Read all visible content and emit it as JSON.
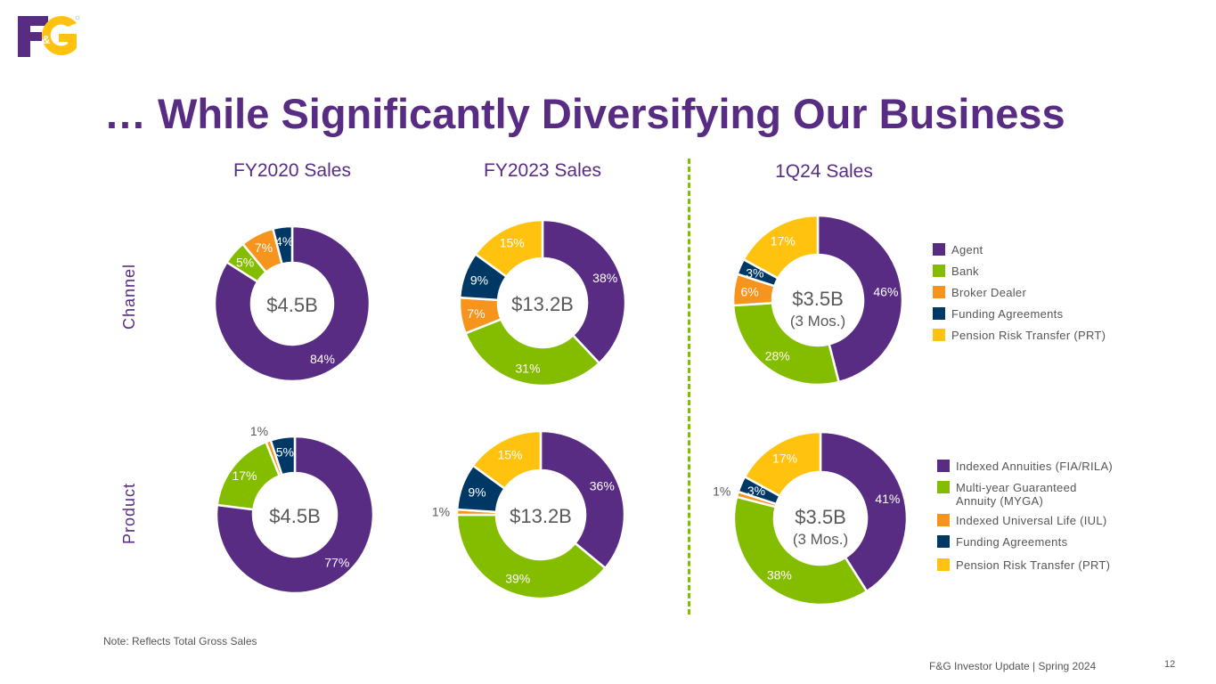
{
  "header": {
    "logo_text": "F&G",
    "title": "… While Significantly Diversifying Our Business"
  },
  "columns": [
    "FY2020 Sales",
    "FY2023 Sales",
    "1Q24 Sales"
  ],
  "rows": [
    "Channel",
    "Product"
  ],
  "colors": {
    "purple": "#582c83",
    "green": "#84bd00",
    "orange": "#f7941d",
    "navy": "#003865",
    "yellow": "#ffc20e",
    "divider": "#84bd00"
  },
  "legends": {
    "channel": [
      {
        "label": "Agent",
        "color": "#582c83"
      },
      {
        "label": "Bank",
        "color": "#84bd00"
      },
      {
        "label": "Broker Dealer",
        "color": "#f7941d"
      },
      {
        "label": "Funding Agreements",
        "color": "#003865"
      },
      {
        "label": "Pension Risk Transfer (PRT)",
        "color": "#ffc20e"
      }
    ],
    "product": [
      {
        "label": "Indexed Annuities (FIA/RILA)",
        "color": "#582c83"
      },
      {
        "label": "Multi-year Guaranteed Annuity (MYGA)",
        "color": "#84bd00"
      },
      {
        "label": "Indexed Universal Life (IUL)",
        "color": "#f7941d"
      },
      {
        "label": "Funding Agreements",
        "color": "#003865"
      },
      {
        "label": "Pension Risk Transfer (PRT)",
        "color": "#ffc20e"
      }
    ]
  },
  "chart_data": [
    {
      "type": "pie",
      "variant": "donut",
      "row": "Channel",
      "title": "FY2020 Sales",
      "center_label": "$4.5B",
      "center_sublabel": "",
      "categories": [
        "Agent",
        "Bank",
        "Broker Dealer",
        "Funding Agreements",
        "Pension Risk Transfer (PRT)"
      ],
      "values": [
        84,
        5,
        7,
        4,
        0
      ],
      "labels": [
        "84%",
        "5%",
        "7%",
        "4%",
        ""
      ]
    },
    {
      "type": "pie",
      "variant": "donut",
      "row": "Channel",
      "title": "FY2023 Sales",
      "center_label": "$13.2B",
      "center_sublabel": "",
      "categories": [
        "Agent",
        "Bank",
        "Broker Dealer",
        "Funding Agreements",
        "Pension Risk Transfer (PRT)"
      ],
      "values": [
        38,
        31,
        7,
        9,
        15
      ],
      "labels": [
        "38%",
        "31%",
        "7%",
        "9%",
        "15%"
      ]
    },
    {
      "type": "pie",
      "variant": "donut",
      "row": "Channel",
      "title": "1Q24 Sales",
      "center_label": "$3.5B",
      "center_sublabel": "(3 Mos.)",
      "categories": [
        "Agent",
        "Bank",
        "Broker Dealer",
        "Funding Agreements",
        "Pension Risk Transfer (PRT)"
      ],
      "values": [
        46,
        28,
        6,
        3,
        17
      ],
      "labels": [
        "46%",
        "28%",
        "6%",
        "3%",
        "17%"
      ]
    },
    {
      "type": "pie",
      "variant": "donut",
      "row": "Product",
      "title": "FY2020 Sales",
      "center_label": "$4.5B",
      "center_sublabel": "",
      "categories": [
        "Indexed Annuities (FIA/RILA)",
        "Multi-year Guaranteed Annuity (MYGA)",
        "Indexed Universal Life (IUL)",
        "Funding Agreements",
        "Pension Risk Transfer (PRT)"
      ],
      "values": [
        77,
        17,
        1,
        5,
        0
      ],
      "labels": [
        "77%",
        "17%",
        "1%",
        "5%",
        ""
      ]
    },
    {
      "type": "pie",
      "variant": "donut",
      "row": "Product",
      "title": "FY2023 Sales",
      "center_label": "$13.2B",
      "center_sublabel": "",
      "categories": [
        "Indexed Annuities (FIA/RILA)",
        "Multi-year Guaranteed Annuity (MYGA)",
        "Indexed Universal Life (IUL)",
        "Funding Agreements",
        "Pension Risk Transfer (PRT)"
      ],
      "values": [
        36,
        39,
        1,
        9,
        15
      ],
      "labels": [
        "36%",
        "39%",
        "1%",
        "9%",
        "15%"
      ]
    },
    {
      "type": "pie",
      "variant": "donut",
      "row": "Product",
      "title": "1Q24 Sales",
      "center_label": "$3.5B",
      "center_sublabel": "(3 Mos.)",
      "categories": [
        "Indexed Annuities (FIA/RILA)",
        "Multi-year Guaranteed Annuity (MYGA)",
        "Indexed Universal Life (IUL)",
        "Funding Agreements",
        "Pension Risk Transfer (PRT)"
      ],
      "values": [
        41,
        38,
        1,
        3,
        17
      ],
      "labels": [
        "41%",
        "38%",
        "1%",
        "3%",
        "17%"
      ]
    }
  ],
  "footer": {
    "note": "Note:  Reflects Total Gross Sales",
    "text": "F&G Investor Update | Spring 2024",
    "page": "12"
  }
}
